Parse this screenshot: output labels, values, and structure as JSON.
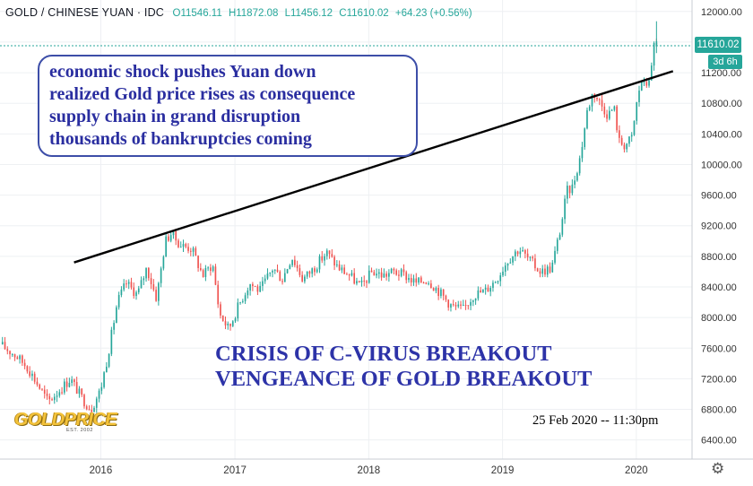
{
  "header": {
    "symbol": "GOLD / CHINESE YUAN · IDC",
    "open": "O11546.11",
    "high": "H11872.08",
    "low": "L11456.12",
    "close": "C11610.02",
    "change": "+64.23 (+0.56%)"
  },
  "price_tag": "11610.02",
  "time_tag": "3d 6h",
  "annotation_lines": [
    "economic shock pushes Yuan down",
    "realized Gold price rises as consequence",
    "supply chain in grand disruption",
    "thousands of bankruptcies coming"
  ],
  "crisis_lines": [
    "CRISIS OF C-VIRUS BREAKOUT",
    "VENGEANCE OF GOLD BREAKOUT"
  ],
  "timestamp": "25 Feb 2020 -- 11:30pm",
  "logo": {
    "word": "GOLDPRICE",
    "est": "EST. 2002"
  },
  "settings_icon": "gear-icon",
  "colors": {
    "up": "#26a69a",
    "down": "#ef5350",
    "annotation": "#2d33a8",
    "trendline": "#000000"
  },
  "chart_data": {
    "type": "candlestick",
    "x_ticks": [
      "2016",
      "2017",
      "2018",
      "2019",
      "2020"
    ],
    "y_ticks": [
      6400,
      6800,
      7200,
      7600,
      8000,
      8400,
      8800,
      9200,
      9600,
      10000,
      10400,
      10800,
      11200,
      11600,
      12000
    ],
    "ylim": [
      6150,
      12150
    ],
    "xlim": [
      "2015-04-01",
      "2020-06-01"
    ],
    "last_price": 11610.02,
    "price_series": [
      [
        "2015-04-01",
        7650
      ],
      [
        "2015-05-15",
        7500
      ],
      [
        "2015-06-15",
        7350
      ],
      [
        "2015-07-10",
        7150
      ],
      [
        "2015-08-10",
        6900
      ],
      [
        "2015-09-10",
        7050
      ],
      [
        "2015-10-10",
        7200
      ],
      [
        "2015-11-10",
        6950
      ],
      [
        "2015-12-05",
        6800
      ],
      [
        "2015-12-31",
        7050
      ],
      [
        "2016-01-20",
        7500
      ],
      [
        "2016-02-15",
        8200
      ],
      [
        "2016-03-10",
        8450
      ],
      [
        "2016-04-10",
        8300
      ],
      [
        "2016-05-05",
        8650
      ],
      [
        "2016-06-01",
        8250
      ],
      [
        "2016-06-25",
        9000
      ],
      [
        "2016-07-10",
        9100
      ],
      [
        "2016-08-05",
        8950
      ],
      [
        "2016-09-05",
        8900
      ],
      [
        "2016-10-05",
        8550
      ],
      [
        "2016-11-01",
        8700
      ],
      [
        "2016-11-20",
        8050
      ],
      [
        "2016-12-15",
        7850
      ],
      [
        "2017-01-10",
        8150
      ],
      [
        "2017-02-10",
        8450
      ],
      [
        "2017-03-10",
        8350
      ],
      [
        "2017-04-15",
        8650
      ],
      [
        "2017-05-10",
        8500
      ],
      [
        "2017-06-05",
        8800
      ],
      [
        "2017-07-05",
        8500
      ],
      [
        "2017-08-05",
        8650
      ],
      [
        "2017-09-08",
        8850
      ],
      [
        "2017-10-10",
        8650
      ],
      [
        "2017-11-10",
        8550
      ],
      [
        "2017-12-10",
        8400
      ],
      [
        "2018-01-10",
        8600
      ],
      [
        "2018-02-10",
        8550
      ],
      [
        "2018-03-10",
        8600
      ],
      [
        "2018-04-10",
        8550
      ],
      [
        "2018-05-10",
        8450
      ],
      [
        "2018-06-10",
        8500
      ],
      [
        "2018-07-10",
        8350
      ],
      [
        "2018-08-15",
        8150
      ],
      [
        "2018-09-15",
        8100
      ],
      [
        "2018-10-15",
        8300
      ],
      [
        "2018-11-15",
        8350
      ],
      [
        "2018-12-15",
        8500
      ],
      [
        "2019-01-15",
        8750
      ],
      [
        "2019-02-15",
        8900
      ],
      [
        "2019-03-15",
        8750
      ],
      [
        "2019-04-15",
        8600
      ],
      [
        "2019-05-15",
        8650
      ],
      [
        "2019-06-10",
        9200
      ],
      [
        "2019-06-25",
        9650
      ],
      [
        "2019-07-10",
        9700
      ],
      [
        "2019-08-01",
        10100
      ],
      [
        "2019-08-20",
        10700
      ],
      [
        "2019-09-05",
        10950
      ],
      [
        "2019-09-25",
        10800
      ],
      [
        "2019-10-15",
        10650
      ],
      [
        "2019-11-01",
        10750
      ],
      [
        "2019-11-15",
        10300
      ],
      [
        "2019-12-01",
        10250
      ],
      [
        "2019-12-20",
        10350
      ],
      [
        "2020-01-05",
        10900
      ],
      [
        "2020-01-15",
        11100
      ],
      [
        "2020-01-25",
        11000
      ],
      [
        "2020-02-05",
        11150
      ],
      [
        "2020-02-15",
        11300
      ],
      [
        "2020-02-20",
        11700
      ],
      [
        "2020-02-25",
        11610
      ]
    ],
    "trendline": {
      "from": [
        "2015-10-20",
        8720
      ],
      "to": [
        "2020-04-10",
        11220
      ]
    }
  }
}
